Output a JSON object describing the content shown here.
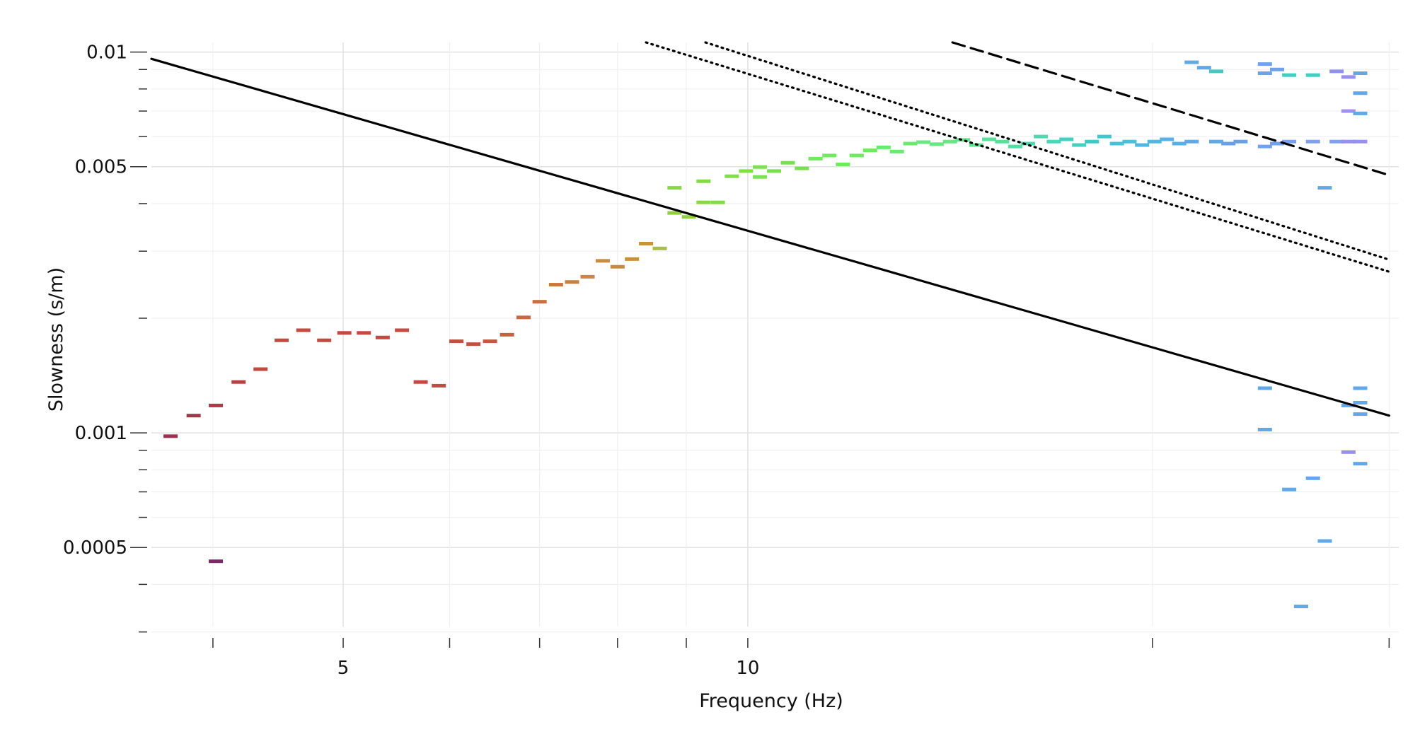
{
  "chart_data": {
    "type": "scatter",
    "title": "",
    "xlabel": "Frequency (Hz)",
    "ylabel": "Slowness (s/m)",
    "x_scale": "log",
    "y_scale": "log",
    "xlim": [
      3.6,
      30.5
    ],
    "ylim": [
      0.00031,
      0.0106
    ],
    "grid": true,
    "x_tick_labels": [
      {
        "value": 5,
        "label": "5"
      },
      {
        "value": 10,
        "label": "10"
      }
    ],
    "x_minor_ticks": [
      4,
      6,
      7,
      8,
      9,
      20,
      30
    ],
    "y_tick_labels": [
      {
        "value": 0.01,
        "label": "0.01"
      },
      {
        "value": 0.005,
        "label": "0.005"
      },
      {
        "value": 0.001,
        "label": "0.001"
      },
      {
        "value": 0.0005,
        "label": "0.0005"
      }
    ],
    "y_minor_ticks": [
      0.009,
      0.008,
      0.007,
      0.006,
      0.004,
      0.003,
      0.002,
      0.0009,
      0.0008,
      0.0007,
      0.0006,
      0.0004,
      0.0003
    ],
    "curves": [
      {
        "style": "solid",
        "points": [
          [
            3.6,
            0.0096
          ],
          [
            30.0,
            0.00111
          ]
        ]
      },
      {
        "style": "dotted",
        "points": [
          [
            8.4,
            0.0106
          ],
          [
            30.0,
            0.00265
          ]
        ]
      },
      {
        "style": "dotted",
        "points": [
          [
            9.3,
            0.0106
          ],
          [
            30.0,
            0.00285
          ]
        ]
      },
      {
        "style": "dashed",
        "points": [
          [
            14.2,
            0.0106
          ],
          [
            30.0,
            0.00475
          ]
        ]
      }
    ],
    "dispersion_points": [
      {
        "f": 3.72,
        "s": 0.00098,
        "color": "#a03050"
      },
      {
        "f": 3.87,
        "s": 0.00111,
        "color": "#a83448"
      },
      {
        "f": 4.02,
        "s": 0.00118,
        "color": "#b03848"
      },
      {
        "f": 4.02,
        "s": 0.00046,
        "color": "#7a2a66"
      },
      {
        "f": 4.18,
        "s": 0.00136,
        "color": "#b84040"
      },
      {
        "f": 4.34,
        "s": 0.00147,
        "color": "#c04a40"
      },
      {
        "f": 4.5,
        "s": 0.00175,
        "color": "#c24a40"
      },
      {
        "f": 4.67,
        "s": 0.00186,
        "color": "#c24a40"
      },
      {
        "f": 4.84,
        "s": 0.00175,
        "color": "#c24a40"
      },
      {
        "f": 5.01,
        "s": 0.00183,
        "color": "#c24a40"
      },
      {
        "f": 5.18,
        "s": 0.00183,
        "color": "#c24a40"
      },
      {
        "f": 5.35,
        "s": 0.00178,
        "color": "#c24a40"
      },
      {
        "f": 5.53,
        "s": 0.00186,
        "color": "#c24a40"
      },
      {
        "f": 5.71,
        "s": 0.00136,
        "color": "#c24a40"
      },
      {
        "f": 5.89,
        "s": 0.00133,
        "color": "#c24a40"
      },
      {
        "f": 6.07,
        "s": 0.00174,
        "color": "#c05040"
      },
      {
        "f": 6.25,
        "s": 0.00171,
        "color": "#c05040"
      },
      {
        "f": 6.43,
        "s": 0.00174,
        "color": "#c25a40"
      },
      {
        "f": 6.62,
        "s": 0.00181,
        "color": "#c86040"
      },
      {
        "f": 6.81,
        "s": 0.00201,
        "color": "#c86840"
      },
      {
        "f": 7.0,
        "s": 0.00221,
        "color": "#c87040"
      },
      {
        "f": 7.2,
        "s": 0.00245,
        "color": "#c87840"
      },
      {
        "f": 7.4,
        "s": 0.00249,
        "color": "#c88040"
      },
      {
        "f": 7.6,
        "s": 0.00257,
        "color": "#c88840"
      },
      {
        "f": 7.8,
        "s": 0.00283,
        "color": "#c88c40"
      },
      {
        "f": 8.0,
        "s": 0.00273,
        "color": "#c88c40"
      },
      {
        "f": 8.2,
        "s": 0.00286,
        "color": "#c89040"
      },
      {
        "f": 8.4,
        "s": 0.00314,
        "color": "#c89040"
      },
      {
        "f": 8.6,
        "s": 0.00305,
        "color": "#a8c040"
      },
      {
        "f": 8.82,
        "s": 0.00378,
        "color": "#90d040"
      },
      {
        "f": 8.82,
        "s": 0.0044,
        "color": "#88d840"
      },
      {
        "f": 9.04,
        "s": 0.00369,
        "color": "#90d040"
      },
      {
        "f": 9.27,
        "s": 0.00403,
        "color": "#88d840"
      },
      {
        "f": 9.27,
        "s": 0.00458,
        "color": "#80dc40"
      },
      {
        "f": 9.5,
        "s": 0.00403,
        "color": "#80dc40"
      },
      {
        "f": 9.73,
        "s": 0.00472,
        "color": "#80e040"
      },
      {
        "f": 9.97,
        "s": 0.00487,
        "color": "#80e040"
      },
      {
        "f": 10.21,
        "s": 0.00499,
        "color": "#7ce050"
      },
      {
        "f": 10.21,
        "s": 0.0047,
        "color": "#7ce050"
      },
      {
        "f": 10.46,
        "s": 0.00487,
        "color": "#78e050"
      },
      {
        "f": 10.71,
        "s": 0.00512,
        "color": "#76e050"
      },
      {
        "f": 10.97,
        "s": 0.00495,
        "color": "#76e050"
      },
      {
        "f": 11.23,
        "s": 0.00525,
        "color": "#72e860"
      },
      {
        "f": 11.5,
        "s": 0.00535,
        "color": "#72e860"
      },
      {
        "f": 11.77,
        "s": 0.00507,
        "color": "#70e860"
      },
      {
        "f": 12.05,
        "s": 0.00535,
        "color": "#70e860"
      },
      {
        "f": 12.33,
        "s": 0.00552,
        "color": "#70e860"
      },
      {
        "f": 12.62,
        "s": 0.00562,
        "color": "#6ce870"
      },
      {
        "f": 12.91,
        "s": 0.00548,
        "color": "#6ce870"
      },
      {
        "f": 13.21,
        "s": 0.00575,
        "color": "#6ce870"
      },
      {
        "f": 13.51,
        "s": 0.0058,
        "color": "#68e880"
      },
      {
        "f": 13.82,
        "s": 0.00573,
        "color": "#68e880"
      },
      {
        "f": 14.14,
        "s": 0.00582,
        "color": "#64e880"
      },
      {
        "f": 14.46,
        "s": 0.00588,
        "color": "#60e888"
      },
      {
        "f": 14.79,
        "s": 0.0057,
        "color": "#5ce890"
      },
      {
        "f": 15.12,
        "s": 0.0059,
        "color": "#58e098"
      },
      {
        "f": 15.46,
        "s": 0.00582,
        "color": "#58e098"
      },
      {
        "f": 15.81,
        "s": 0.00565,
        "color": "#50e0a0"
      },
      {
        "f": 16.16,
        "s": 0.00575,
        "color": "#4cd8b0"
      },
      {
        "f": 16.52,
        "s": 0.006,
        "color": "#50d8b0"
      },
      {
        "f": 16.89,
        "s": 0.00582,
        "color": "#48d8b8"
      },
      {
        "f": 17.26,
        "s": 0.0059,
        "color": "#44d0c0"
      },
      {
        "f": 17.64,
        "s": 0.0057,
        "color": "#44d0c0"
      },
      {
        "f": 18.03,
        "s": 0.00582,
        "color": "#40c8c8"
      },
      {
        "f": 18.42,
        "s": 0.006,
        "color": "#40c8d0"
      },
      {
        "f": 18.82,
        "s": 0.00575,
        "color": "#48c0d8"
      },
      {
        "f": 19.23,
        "s": 0.00582,
        "color": "#48c0d8"
      },
      {
        "f": 19.65,
        "s": 0.0057,
        "color": "#50b8e0"
      },
      {
        "f": 20.07,
        "s": 0.00582,
        "color": "#50b8e0"
      },
      {
        "f": 20.5,
        "s": 0.0059,
        "color": "#58b0e8"
      },
      {
        "f": 20.94,
        "s": 0.00575,
        "color": "#58b0e8"
      },
      {
        "f": 21.39,
        "s": 0.00582,
        "color": "#60a8e8"
      },
      {
        "f": 21.39,
        "s": 0.0094,
        "color": "#60a8e8"
      },
      {
        "f": 21.85,
        "s": 0.0091,
        "color": "#60a8e8"
      },
      {
        "f": 22.31,
        "s": 0.0089,
        "color": "#48c8c0"
      },
      {
        "f": 22.31,
        "s": 0.00582,
        "color": "#60a8e8"
      },
      {
        "f": 22.78,
        "s": 0.00575,
        "color": "#68a0e8"
      },
      {
        "f": 23.26,
        "s": 0.00582,
        "color": "#68a0e8"
      },
      {
        "f": 24.25,
        "s": 0.00565,
        "color": "#70a0f0"
      },
      {
        "f": 24.25,
        "s": 0.0093,
        "color": "#70a0f0"
      },
      {
        "f": 24.25,
        "s": 0.0088,
        "color": "#70a0f0"
      },
      {
        "f": 24.25,
        "s": 0.00131,
        "color": "#60a8e8"
      },
      {
        "f": 24.25,
        "s": 0.00102,
        "color": "#60a8e8"
      },
      {
        "f": 24.76,
        "s": 0.00575,
        "color": "#70a0f0"
      },
      {
        "f": 24.76,
        "s": 0.009,
        "color": "#70a0f0"
      },
      {
        "f": 25.28,
        "s": 0.0087,
        "color": "#40d0c0"
      },
      {
        "f": 25.28,
        "s": 0.00582,
        "color": "#78a0f0"
      },
      {
        "f": 25.28,
        "s": 0.00071,
        "color": "#60a8e8"
      },
      {
        "f": 25.8,
        "s": 0.00035,
        "color": "#60a8e8"
      },
      {
        "f": 26.33,
        "s": 0.0087,
        "color": "#40d0c0"
      },
      {
        "f": 26.33,
        "s": 0.00582,
        "color": "#80a0f0"
      },
      {
        "f": 26.33,
        "s": 0.00076,
        "color": "#60a8e8"
      },
      {
        "f": 26.87,
        "s": 0.0044,
        "color": "#60a8e8"
      },
      {
        "f": 26.87,
        "s": 0.00052,
        "color": "#60a8e8"
      },
      {
        "f": 27.42,
        "s": 0.00582,
        "color": "#80a0f0"
      },
      {
        "f": 27.42,
        "s": 0.0089,
        "color": "#9090f0"
      },
      {
        "f": 27.98,
        "s": 0.0086,
        "color": "#9890f0"
      },
      {
        "f": 27.98,
        "s": 0.007,
        "color": "#a090f0"
      },
      {
        "f": 27.98,
        "s": 0.00582,
        "color": "#9890f0"
      },
      {
        "f": 27.98,
        "s": 0.00118,
        "color": "#60a8e8"
      },
      {
        "f": 27.98,
        "s": 0.00089,
        "color": "#9890f0"
      },
      {
        "f": 28.55,
        "s": 0.0088,
        "color": "#60a8e8"
      },
      {
        "f": 28.55,
        "s": 0.0078,
        "color": "#60a8e8"
      },
      {
        "f": 28.55,
        "s": 0.0069,
        "color": "#60a8e8"
      },
      {
        "f": 28.55,
        "s": 0.00582,
        "color": "#9890f0"
      },
      {
        "f": 28.55,
        "s": 0.00131,
        "color": "#60a8e8"
      },
      {
        "f": 28.55,
        "s": 0.0012,
        "color": "#60a8e8"
      },
      {
        "f": 28.55,
        "s": 0.00112,
        "color": "#60a8e8"
      },
      {
        "f": 28.55,
        "s": 0.00083,
        "color": "#60a8e8"
      }
    ]
  }
}
